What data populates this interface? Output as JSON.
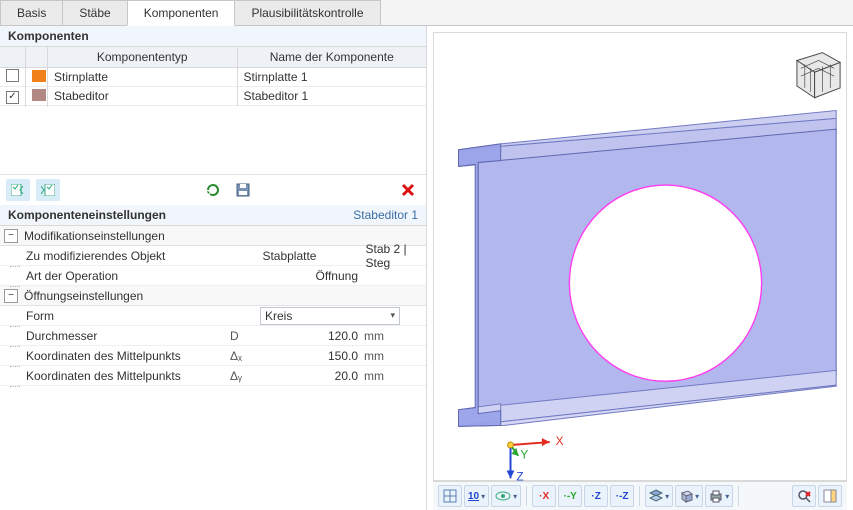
{
  "tabs": {
    "items": [
      "Basis",
      "Stäbe",
      "Komponenten",
      "Plausibilitätskontrolle"
    ],
    "active": 2
  },
  "components": {
    "title": "Komponenten",
    "headers": {
      "type": "Komponententyp",
      "name": "Name der Komponente"
    },
    "rows": [
      {
        "checked": false,
        "color": "#f08018",
        "type": "Stirnplatte",
        "name": "Stirnplatte 1"
      },
      {
        "checked": true,
        "color": "#b18884",
        "type": "Stabeditor",
        "name": "Stabeditor 1"
      }
    ],
    "toolbar_icons": [
      "checklist-left-icon",
      "checklist-right-icon",
      "refresh-icon",
      "save-icon",
      "delete-icon"
    ]
  },
  "settings": {
    "title": "Komponenteneinstellungen",
    "current": "Stabeditor 1",
    "groups": [
      {
        "label": "Modifikationseinstellungen",
        "rows": [
          {
            "name": "Zu modifizierendes Objekt",
            "value": "Stabplatte",
            "extra": "Stab 2 | Steg"
          },
          {
            "name": "Art der Operation",
            "value": "Öffnung"
          }
        ]
      },
      {
        "label": "Öffnungseinstellungen",
        "rows": [
          {
            "name": "Form",
            "dropdown": "Kreis"
          },
          {
            "name": "Durchmesser",
            "sym": "D",
            "value": "120.0",
            "unit": "mm"
          },
          {
            "name": "Koordinaten des Mittelpunkts",
            "sym": "Δₓ",
            "value": "150.0",
            "unit": "mm"
          },
          {
            "name": "Koordinaten des Mittelpunkts",
            "sym": "Δᵧ",
            "value": "20.0",
            "unit": "mm"
          }
        ]
      }
    ]
  },
  "viewport": {
    "beam_color": "#9aa3e9",
    "beam_face": "#b2b7ee",
    "beam_edge": "#5f67b0",
    "flange_top": "#c0c3ee",
    "flange_bot": "#cfd2f3",
    "flange_edge": "#717ac2",
    "hole_stroke": "#ff3cf0",
    "hole_fill": "#ffffff",
    "axis": {
      "x": "#e52b1f",
      "y": "#2aa52e",
      "z": "#2246d4"
    },
    "navcube_stroke": "#4a4a4a",
    "navcube_fill": "#e8e8e8"
  },
  "vp_toolbar": {
    "items": [
      {
        "name": "grid-icon",
        "dd": false
      },
      {
        "name": "scale-10-icon",
        "dd": true,
        "label": "10"
      },
      {
        "name": "eye-icon",
        "dd": true
      },
      {
        "name": "axis-x-icon",
        "dd": false,
        "txt": "·X",
        "clr": "#e52b1f"
      },
      {
        "name": "axis-neg-y-icon",
        "dd": false,
        "txt": "·-Y",
        "clr": "#2aa52e"
      },
      {
        "name": "axis-z-icon",
        "dd": false,
        "txt": "·Z",
        "clr": "#2246d4"
      },
      {
        "name": "axis-neg-z-icon",
        "dd": false,
        "txt": "·-Z",
        "clr": "#2246d4"
      },
      {
        "name": "layers-icon",
        "dd": true
      },
      {
        "name": "box-icon",
        "dd": true
      },
      {
        "name": "print-icon",
        "dd": true
      },
      {
        "name": "search-cancel-icon",
        "dd": false
      },
      {
        "name": "panel-icon",
        "dd": false
      }
    ]
  }
}
